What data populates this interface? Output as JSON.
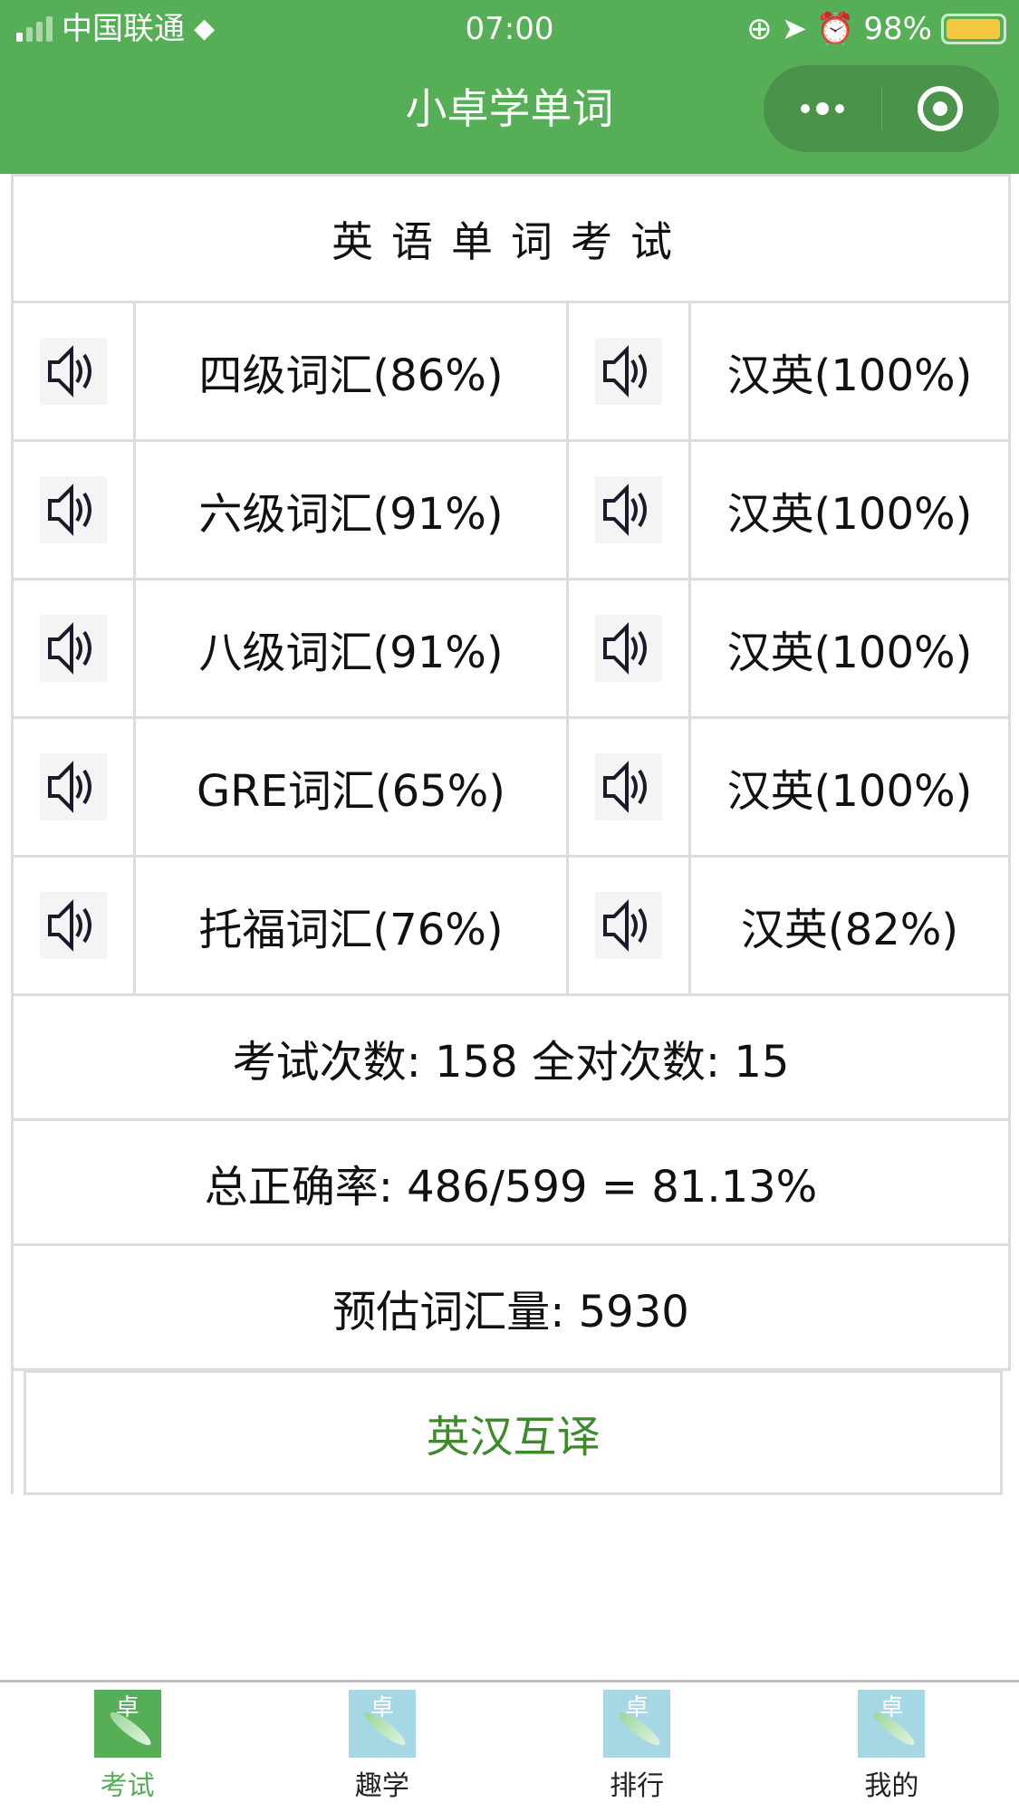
{
  "status_bar": {
    "carrier": "中国联通",
    "time": "07:00",
    "battery": "98%",
    "battery_level": 0.98
  },
  "nav": {
    "title": "小卓学单词",
    "more_icon": "more-dots-icon",
    "close_icon": "target-circle-icon"
  },
  "exam": {
    "title": "英语单词考试",
    "rows": [
      {
        "left": "四级词汇(86%)",
        "right": "汉英(100%)"
      },
      {
        "left": "六级词汇(91%)",
        "right": "汉英(100%)"
      },
      {
        "left": "八级词汇(91%)",
        "right": "汉英(100%)"
      },
      {
        "left": "GRE词汇(65%)",
        "right": "汉英(100%)"
      },
      {
        "left": "托福词汇(76%)",
        "right": "汉英(82%)"
      }
    ],
    "stats": [
      "考试次数: 158 全对次数: 15",
      "总正确率: 486/599 = 81.13%",
      "预估词汇量: 5930"
    ],
    "button": "英汉互译"
  },
  "tabs": [
    {
      "label": "考试",
      "icon_text": "卓",
      "active": true
    },
    {
      "label": "趣学",
      "icon_text": "卓",
      "active": false
    },
    {
      "label": "排行",
      "icon_text": "卓",
      "active": false
    },
    {
      "label": "我的",
      "icon_text": "卓",
      "active": false
    }
  ],
  "colors": {
    "brand": "#56ae57",
    "button_text": "#3c8a2a",
    "tab_inactive_bg": "#a6d7e5"
  }
}
